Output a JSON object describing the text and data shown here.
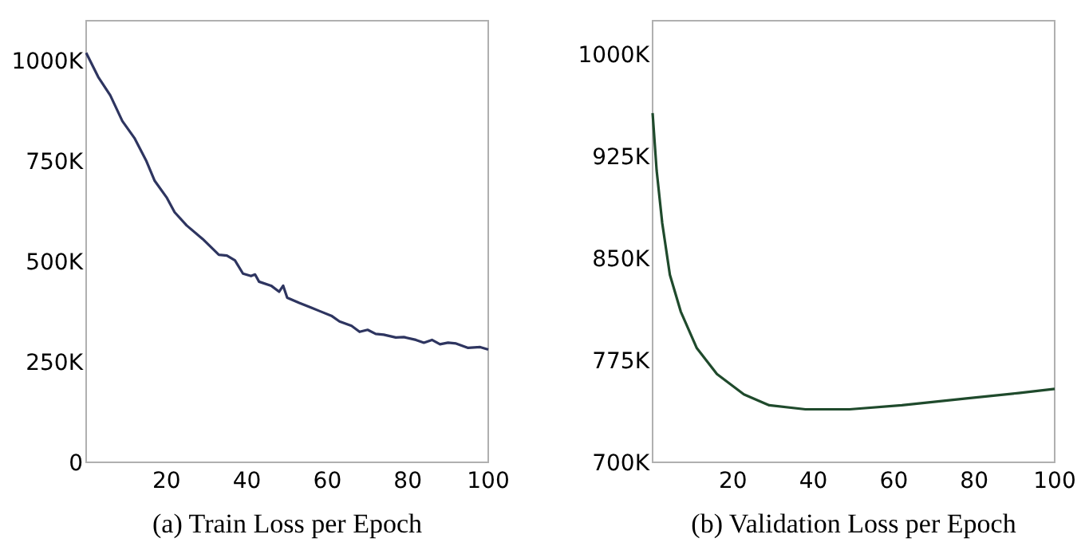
{
  "chart_data": [
    {
      "type": "line",
      "title": "(a) Train Loss per Epoch",
      "x": [
        0,
        3,
        6,
        9,
        12,
        15,
        17,
        20,
        22,
        25,
        29,
        33,
        35,
        37,
        39,
        41,
        42,
        43,
        46,
        48,
        49,
        50,
        53,
        56,
        58,
        61,
        63,
        66,
        68,
        70,
        72,
        74,
        77,
        79,
        82,
        84,
        86,
        88,
        90,
        92,
        95,
        98,
        100
      ],
      "series": [
        {
          "color": "#2e3560",
          "values": [
            1020000,
            960000,
            914000,
            850000,
            808000,
            750000,
            702000,
            660000,
            623000,
            590000,
            556000,
            517000,
            515000,
            503000,
            470000,
            464000,
            468000,
            450000,
            440000,
            425000,
            440000,
            410000,
            397000,
            385000,
            377000,
            365000,
            351000,
            340000,
            325000,
            330000,
            320000,
            318000,
            311000,
            312000,
            305000,
            298000,
            305000,
            294000,
            298000,
            296000,
            285000,
            287000,
            281000
          ]
        }
      ],
      "xlim": [
        0,
        100
      ],
      "xticks": [
        20,
        40,
        60,
        80,
        100
      ],
      "ylim": [
        0,
        1100000
      ],
      "yticks": [
        {
          "value": 0,
          "label": "0"
        },
        {
          "value": 250000,
          "label": "250K"
        },
        {
          "value": 500000,
          "label": "500K"
        },
        {
          "value": 750000,
          "label": "750K"
        },
        {
          "value": 1000000,
          "label": "1000K"
        }
      ],
      "grid": false
    },
    {
      "type": "line",
      "title": "(b) Validation Loss per Epoch",
      "x": [
        0,
        1,
        2.4,
        4.3,
        7,
        11,
        16,
        22.7,
        29,
        38,
        49,
        62,
        78,
        91,
        100
      ],
      "series": [
        {
          "color": "#1f4a2c",
          "values": [
            957000,
            915000,
            876000,
            838000,
            811000,
            784000,
            765000,
            750000,
            742000,
            739000,
            739000,
            742000,
            747000,
            751000,
            754000
          ]
        }
      ],
      "xlim": [
        0,
        100
      ],
      "xticks": [
        20,
        40,
        60,
        80,
        100
      ],
      "ylim": [
        700000,
        1025000
      ],
      "yticks": [
        {
          "value": 700000,
          "label": "700K"
        },
        {
          "value": 775000,
          "label": "775K"
        },
        {
          "value": 850000,
          "label": "850K"
        },
        {
          "value": 925000,
          "label": "925K"
        },
        {
          "value": 1000000,
          "label": "1000K"
        }
      ],
      "grid": false
    }
  ]
}
